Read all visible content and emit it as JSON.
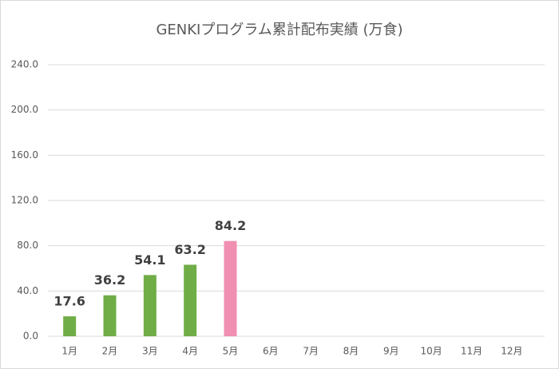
{
  "chart_data": {
    "type": "bar",
    "title": "GENKIプログラム累計配布実績 (万食)",
    "categories": [
      "1月",
      "2月",
      "3月",
      "4月",
      "5月",
      "6月",
      "7月",
      "8月",
      "9月",
      "10月",
      "11月",
      "12月"
    ],
    "values": [
      17.6,
      36.2,
      54.1,
      63.2,
      84.2,
      null,
      null,
      null,
      null,
      null,
      null,
      null
    ],
    "colors": [
      "#70ad47",
      "#70ad47",
      "#70ad47",
      "#70ad47",
      "#f08fb1"
    ],
    "ylim": [
      0,
      240
    ],
    "yticks": [
      {
        "value": 0,
        "label": "0.0"
      },
      {
        "value": 40,
        "label": "40.0"
      },
      {
        "value": 80,
        "label": "80.0"
      },
      {
        "value": 120,
        "label": "120.0"
      },
      {
        "value": 160,
        "label": "160.0"
      },
      {
        "value": 200,
        "label": "200.0"
      },
      {
        "value": 240,
        "label": "240.0"
      }
    ],
    "grid": true
  }
}
